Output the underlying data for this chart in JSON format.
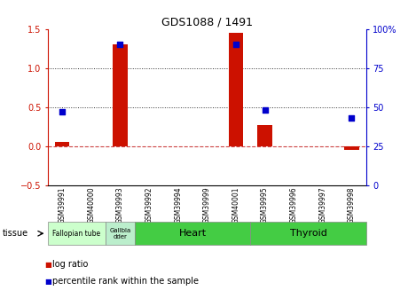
{
  "title": "GDS1088 / 1491",
  "samples": [
    "GSM39991",
    "GSM40000",
    "GSM39993",
    "GSM39992",
    "GSM39994",
    "GSM39999",
    "GSM40001",
    "GSM39995",
    "GSM39996",
    "GSM39997",
    "GSM39998"
  ],
  "log_ratio": [
    0.05,
    0.0,
    1.3,
    0.0,
    0.0,
    0.0,
    1.45,
    0.27,
    0.0,
    0.0,
    -0.05
  ],
  "percentile_rank": [
    47,
    null,
    90,
    null,
    null,
    null,
    90,
    48,
    null,
    null,
    43
  ],
  "tissues": [
    {
      "label": "Fallopian tube",
      "start": 0,
      "end": 2,
      "color": "#ccffcc",
      "fontsize": 5.5
    },
    {
      "label": "Gallbla\ndder",
      "start": 2,
      "end": 3,
      "color": "#bbeecc",
      "fontsize": 5.0
    },
    {
      "label": "Heart",
      "start": 3,
      "end": 7,
      "color": "#44cc44",
      "fontsize": 8
    },
    {
      "label": "Thyroid",
      "start": 7,
      "end": 11,
      "color": "#44cc44",
      "fontsize": 8
    }
  ],
  "ylim_left": [
    -0.5,
    1.5
  ],
  "ylim_right": [
    0,
    100
  ],
  "yticks_left": [
    -0.5,
    0.0,
    0.5,
    1.0,
    1.5
  ],
  "yticks_right": [
    0,
    25,
    50,
    75,
    100
  ],
  "bar_color": "#cc1100",
  "dot_color": "#0000cc",
  "dot_size": 18,
  "hline_color": "#cc4444",
  "dotted_lines": [
    0.5,
    1.0
  ],
  "left_axis_color": "#cc1100",
  "right_axis_color": "#0000cc",
  "bg_color": "#ffffff",
  "legend_items": [
    {
      "label": "log ratio",
      "color": "#cc1100"
    },
    {
      "label": "percentile rank within the sample",
      "color": "#0000cc"
    }
  ]
}
